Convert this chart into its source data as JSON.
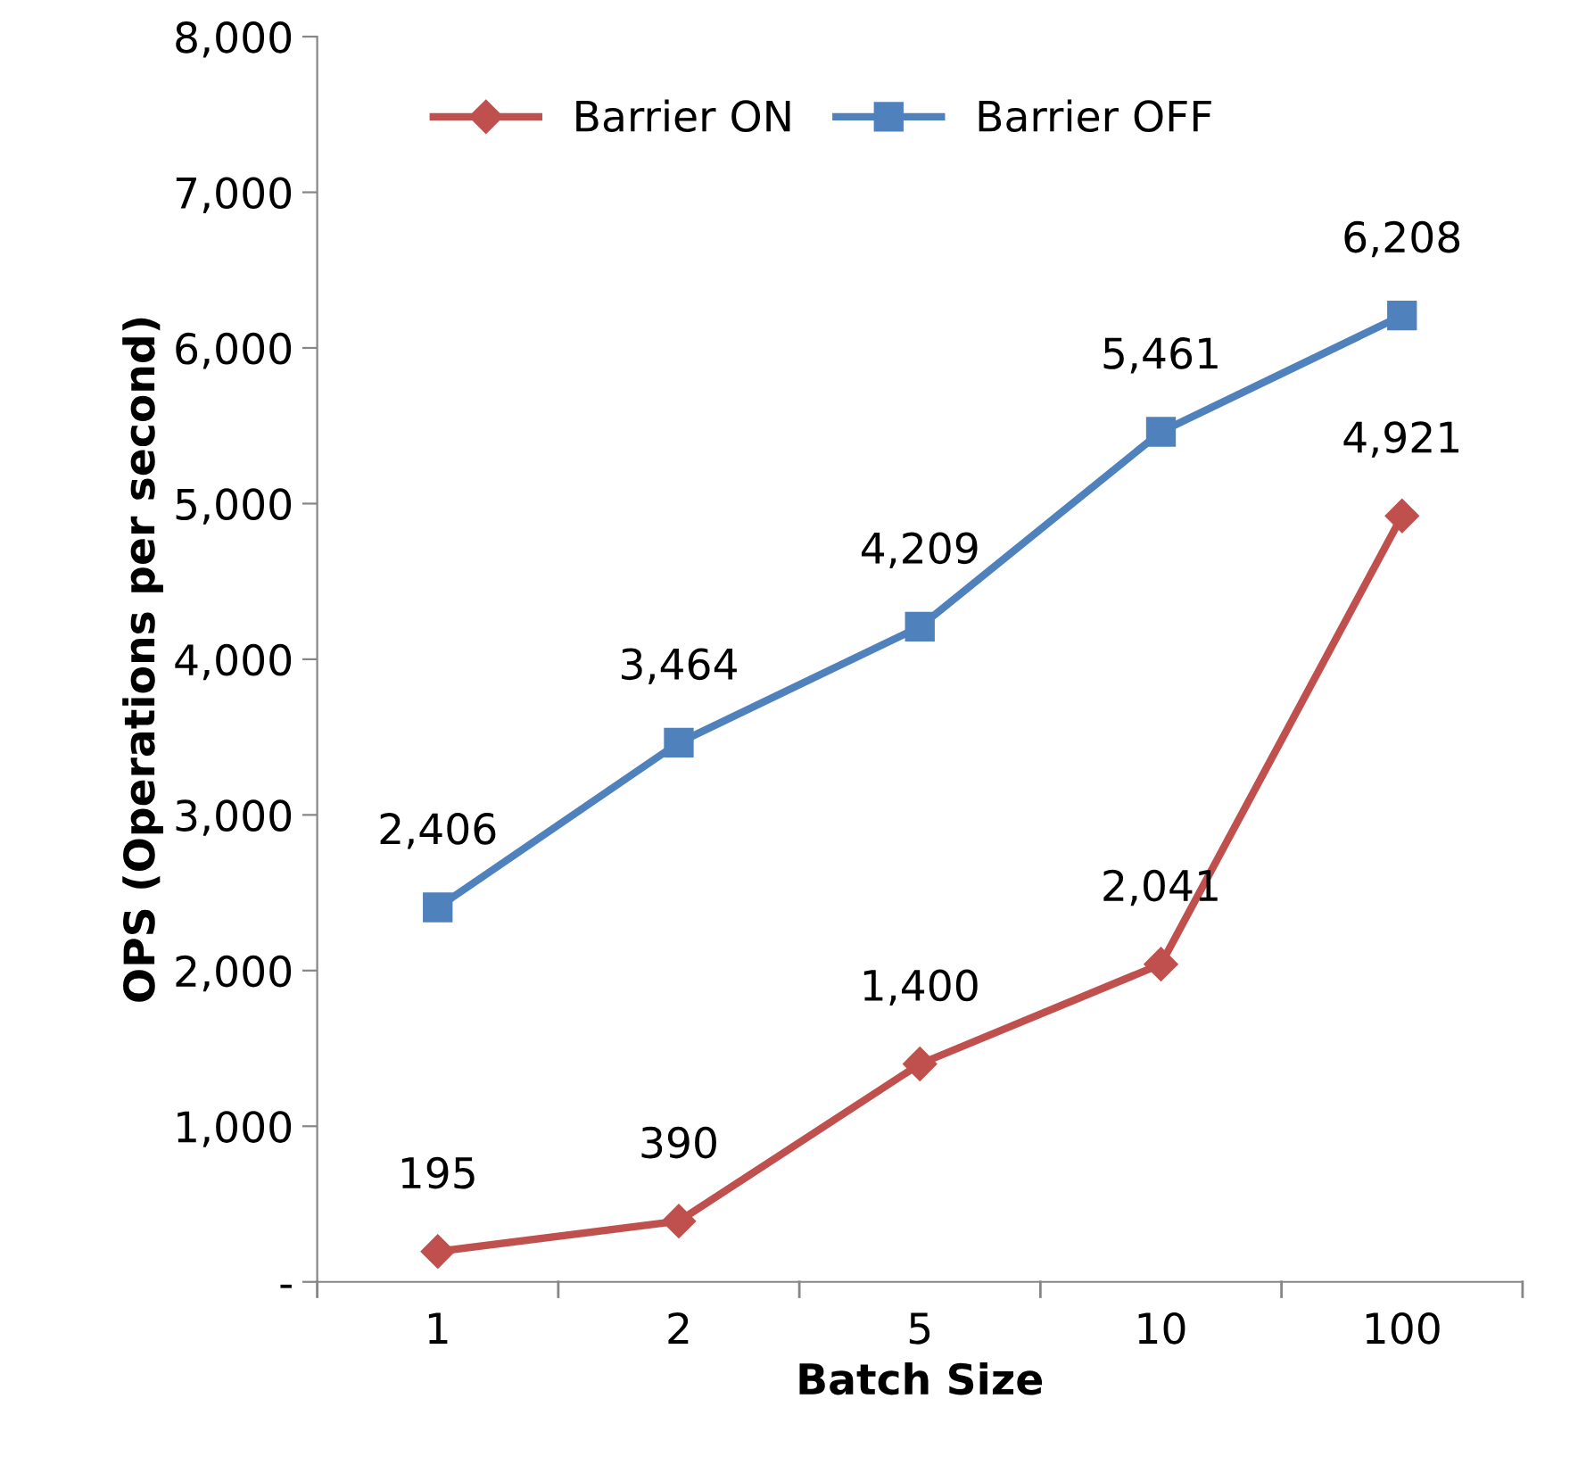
{
  "chart_data": {
    "type": "line",
    "xlabel": "Batch Size",
    "ylabel": "OPS (Operations per second)",
    "categories": [
      "1",
      "2",
      "5",
      "10",
      "100"
    ],
    "series": [
      {
        "name": "Barrier ON",
        "color": "#c0504d",
        "marker": "diamond",
        "values": [
          195,
          390,
          1400,
          2041,
          4921
        ],
        "value_labels": [
          "195",
          "390",
          "1,400",
          "2,041",
          "4,921"
        ]
      },
      {
        "name": "Barrier OFF",
        "color": "#4f81bd",
        "marker": "square",
        "values": [
          2406,
          3464,
          4209,
          5461,
          6208
        ],
        "value_labels": [
          "2,406",
          "3,464",
          "4,209",
          "5,461",
          "6,208"
        ]
      }
    ],
    "ylim": [
      0,
      8000
    ],
    "yticks": [
      {
        "value": 0,
        "label": "-"
      },
      {
        "value": 1000,
        "label": "1,000"
      },
      {
        "value": 2000,
        "label": "2,000"
      },
      {
        "value": 3000,
        "label": "3,000"
      },
      {
        "value": 4000,
        "label": "4,000"
      },
      {
        "value": 5000,
        "label": "5,000"
      },
      {
        "value": 6000,
        "label": "6,000"
      },
      {
        "value": 7000,
        "label": "7,000"
      },
      {
        "value": 8000,
        "label": "8,000"
      }
    ],
    "grid": false,
    "legend": "top",
    "line_style": "solid"
  }
}
